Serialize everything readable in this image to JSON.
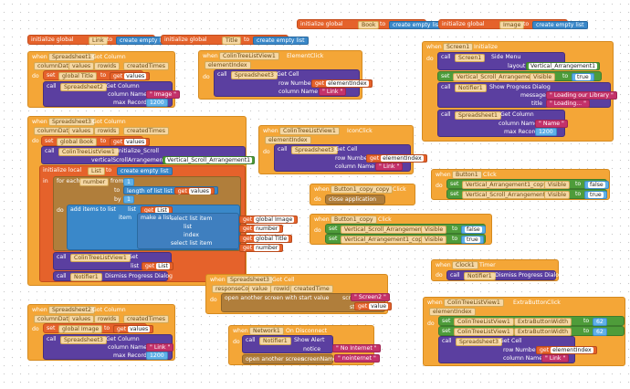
{
  "globals": {
    "book": {
      "init": "initialize global",
      "name": "Book",
      "to": "to",
      "value": "create empty list"
    },
    "image": {
      "init": "initialize global",
      "name": "Image",
      "to": "to",
      "value": "create empty list"
    },
    "link": {
      "init": "initialize global",
      "name": "Link",
      "to": "to",
      "value": "create empty list"
    },
    "title": {
      "init": "initialize global",
      "name": "Title",
      "to": "to",
      "value": "create empty list"
    }
  },
  "sp1": {
    "when": "when",
    "comp": "Spreadsheet1",
    "event": "Got Column",
    "params": [
      "columnData",
      "values",
      "rowIds",
      "createdTimes"
    ],
    "do": "do",
    "set": "set",
    "var": "global Title",
    "to": "to",
    "get": "get",
    "getvar": "values",
    "call": "call",
    "callcomp": "Spreadsheet2",
    "method": "Get Column",
    "colname_lbl": "column Name",
    "colname_val": "Image",
    "maxrec_lbl": "max Record",
    "maxrec_val": "1200"
  },
  "ctv_click": {
    "when": "when",
    "comp": "ColinTreeListView1",
    "event": "ElementClick",
    "param": "elementIndex",
    "do": "do",
    "call": "call",
    "callcomp": "Spreadsheet3",
    "method": "Get Cell",
    "row_lbl": "row Number",
    "get": "get",
    "row_val": "elementIndex",
    "col_lbl": "column Name",
    "col_val": "Link"
  },
  "screen": {
    "when": "when",
    "comp": "Screen1",
    "event": "Initialize",
    "do": "do",
    "call": "call",
    "callcomp": "Screen1",
    "method": "Side Menu",
    "layout_lbl": "layout",
    "layout_val": "Vertical_Arrangement1",
    "set": "set",
    "setcomp": "Vertical_Scroll_Arrangement1",
    "prop": "Visible",
    "to": "to",
    "bool": "true",
    "notifier": "Notifier1",
    "notif_method": "Show Progress Dialog",
    "msg_lbl": "message",
    "msg_val": "Loading our Library",
    "title_lbl": "title",
    "title_val": "Loading...",
    "callcomp2": "Spreadsheet1",
    "method2": "Get Column",
    "colname_lbl": "column Name",
    "colname_val": "Name",
    "maxrec_lbl": "max Record",
    "maxrec_val": "1200"
  },
  "sp3": {
    "when": "when",
    "comp": "Spreadsheet3",
    "event": "Got Column",
    "params": [
      "columnData",
      "values",
      "rowIds",
      "createdTimes"
    ],
    "do": "do",
    "set": "set",
    "var": "global Book",
    "to": "to",
    "get": "get",
    "getvar": "values",
    "call": "call",
    "callcomp": "ColinTreeListView1",
    "method": "Initialize_Scroll",
    "vsa_lbl": "verticalScrollArrangement",
    "vsa_val": "Vertical_Scroll_Arrangement1",
    "init_local": "initialize local",
    "local_name": "List",
    "in": "in",
    "foreach": "for each",
    "number": "number",
    "from": "from",
    "from_val": "1",
    "to_lbl": "to",
    "length": "length of list",
    "list": "list",
    "by": "by",
    "by_val": "1",
    "add_items": "add items to list",
    "list_lbl": "list",
    "item_lbl": "item",
    "make_list": "make a list",
    "select": "select list item",
    "list2": "list",
    "index": "index",
    "g_image": "global Image",
    "g_title": "global Title",
    "setcomp": "ColinTreeListView1",
    "setprop": "Set",
    "list_val": "List",
    "notifier": "Notifier1",
    "dismiss": "Dismiss Progress Dialog"
  },
  "ctv_icon": {
    "when": "when",
    "comp": "ColinTreeListView1",
    "event": "IconClick",
    "param": "elementIndex",
    "do": "do",
    "call": "call",
    "callcomp": "Spreadsheet3",
    "method": "Get Cell",
    "row_lbl": "row Number",
    "get": "get",
    "row_val": "elementIndex",
    "col_lbl": "column Name",
    "col_val": "Link"
  },
  "btn1copy": {
    "when": "when",
    "comp": "Button1_copy_copy",
    "event": "Click",
    "do": "do",
    "action": "close application"
  },
  "button1": {
    "when": "when",
    "comp": "Button1",
    "event": "Click",
    "do": "do",
    "set": "set",
    "comp1": "Vertical_Arrangement1_copy",
    "prop": "Visible",
    "to": "to",
    "val1": "false",
    "comp2": "Vertical_Scroll_Arrangement1",
    "val2": "true"
  },
  "btn1c": {
    "when": "when",
    "comp": "Button1_copy",
    "event": "Click",
    "do": "do",
    "set": "set",
    "comp1": "Vertical_Scroll_Arrangement1",
    "prop": "Visible",
    "to": "to",
    "val1": "false",
    "comp2": "Vertical_Arrangement1_copy",
    "val2": "true"
  },
  "clock": {
    "when": "when",
    "comp": "Clock1",
    "event": "Timer",
    "do": "do",
    "call": "call",
    "callcomp": "Notifier1",
    "method": "Dismiss Progress Dialog"
  },
  "sp3cell": {
    "when": "when",
    "comp": "Spreadsheet3",
    "event": "Got Cell",
    "params": [
      "responseCode",
      "value",
      "rowId",
      "createdTime"
    ],
    "do": "do",
    "action": "open another screen with start value",
    "screen_lbl": "screenName",
    "screen_val": "Screen2",
    "start_lbl": "startValue",
    "get": "get",
    "start_val": "value"
  },
  "sp2": {
    "when": "when",
    "comp": "Spreadsheet2",
    "event": "Got Column",
    "params": [
      "columnData",
      "values",
      "rowIds",
      "createdTimes"
    ],
    "do": "do",
    "set": "set",
    "var": "global Image",
    "to": "to",
    "get": "get",
    "getvar": "values",
    "call": "call",
    "callcomp": "Spreadsheet3",
    "method": "Get Column",
    "colname_lbl": "column Name",
    "colname_val": "Link",
    "maxrec_lbl": "max Record",
    "maxrec_val": "1200"
  },
  "network": {
    "when": "when",
    "comp": "Network1",
    "event": "On Disconnect",
    "do": "do",
    "call": "call",
    "callcomp": "Notifier1",
    "method": "Show Alert",
    "notice_lbl": "notice",
    "notice_val": "No Internet",
    "action": "open another screen",
    "screen_lbl": "screenName",
    "screen_val": "nointernet"
  },
  "extra": {
    "when": "when",
    "comp": "ColinTreeListView1",
    "event": "ExtraButtonClick",
    "param": "elementIndex",
    "do": "do",
    "set": "set",
    "comp1": "ColinTreeListView1",
    "prop": "ExtraButtonWidth",
    "to": "to",
    "val": "62",
    "comp2": "ColinTreeListView1",
    "call": "call",
    "callcomp": "Spreadsheet3",
    "method": "Get Cell",
    "row_lbl": "row Number",
    "get": "get",
    "row_val": "elementIndex",
    "col_lbl": "column Name",
    "col_val": "Link"
  }
}
